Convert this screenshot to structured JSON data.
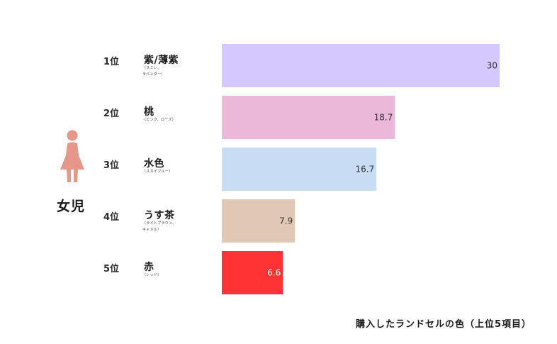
{
  "figure_label": "女児",
  "footnote": "購入したランドセルの色（上位5項目）",
  "icon": "girl-figure-icon",
  "icon_color": "#e7968a",
  "chart_data": {
    "type": "bar",
    "orientation": "horizontal",
    "title": "",
    "xlabel": "",
    "ylabel": "",
    "xlim": [
      0,
      30
    ],
    "grid": false,
    "categories": [
      "紫/薄紫",
      "桃",
      "水色",
      "うす茶",
      "赤"
    ],
    "values": [
      30,
      18.7,
      16.7,
      7.9,
      6.6
    ],
    "value_labels": [
      "30",
      "18.7",
      "16.7",
      "7.9",
      "6.6"
    ],
    "ranks": [
      "1位",
      "2位",
      "3位",
      "4位",
      "5位"
    ],
    "sublabels": [
      [
        "（スミレ、",
        "ラベンダー）"
      ],
      [
        "（ピンク、ローズ）"
      ],
      [
        "（スカイブルー）"
      ],
      [
        "（ライトブラウン、",
        "キャメル）"
      ],
      [
        "（レッド）"
      ]
    ],
    "colors": [
      "#d4c8ff",
      "#ebb8da",
      "#c8dcf4",
      "#e1c8b4",
      "#ff3333"
    ],
    "label_colors": [
      "#333333",
      "#333333",
      "#333333",
      "#333333",
      "#ffffff"
    ]
  }
}
